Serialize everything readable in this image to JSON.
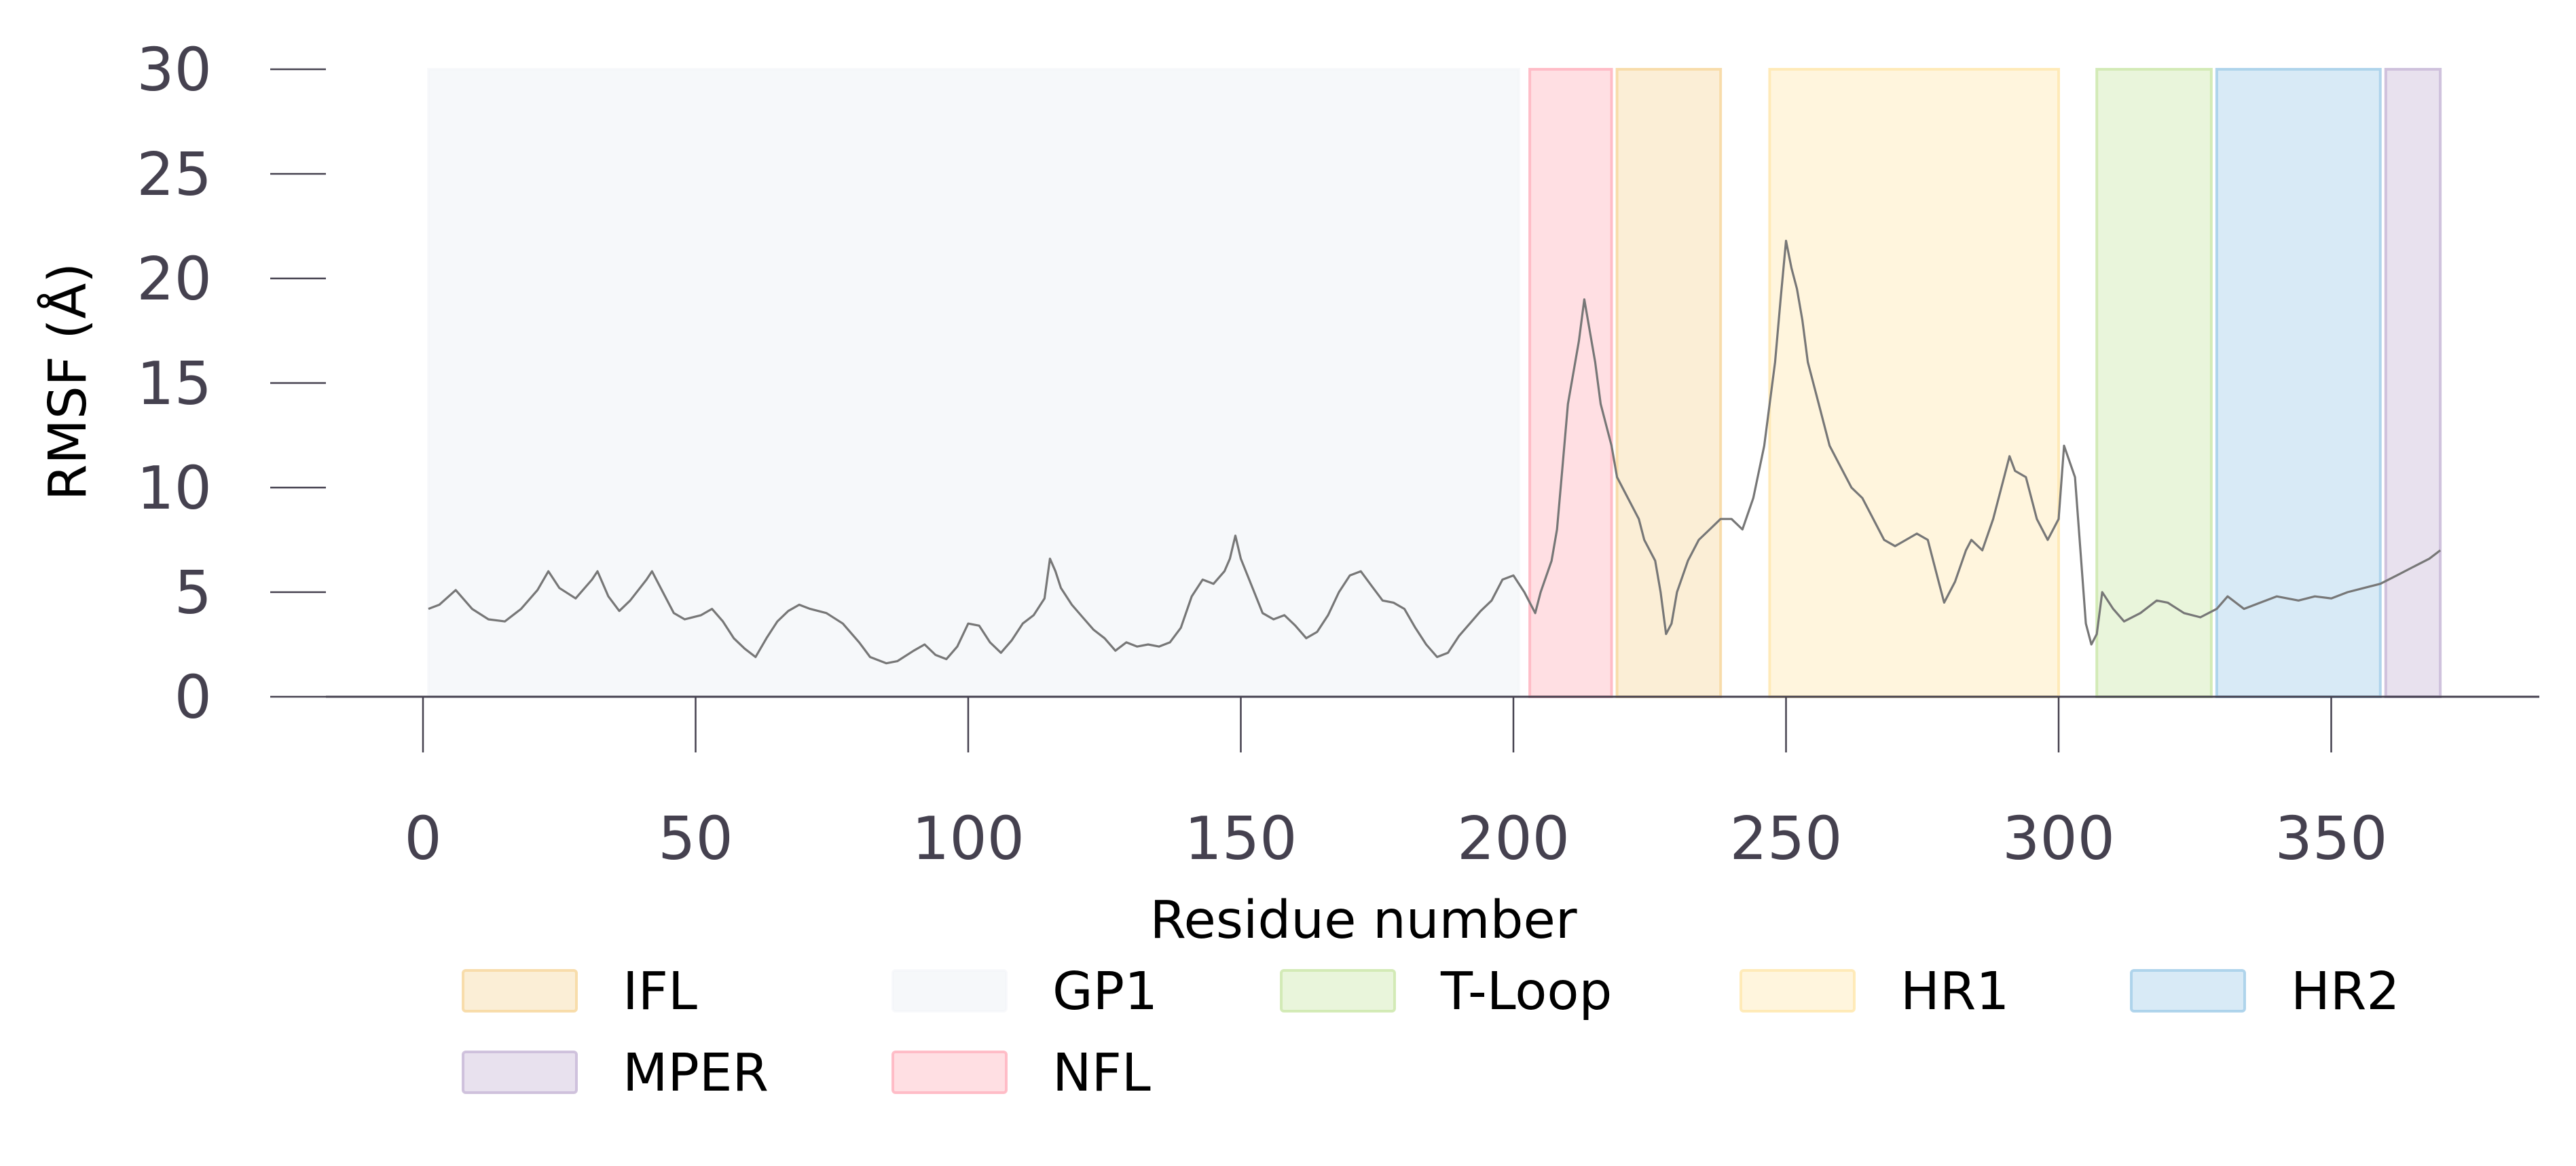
{
  "chart_data": {
    "type": "line",
    "xlabel": "Residue number",
    "ylabel": "RMSF (Å)",
    "xlim": [
      -18,
      388
    ],
    "ylim": [
      0,
      30
    ],
    "xticks": [
      0,
      50,
      100,
      150,
      200,
      250,
      300,
      350
    ],
    "yticks": [
      0,
      5,
      10,
      15,
      20,
      25,
      30
    ],
    "grid": false,
    "legend_position": "bottom",
    "line_color": "#777777",
    "regions": [
      {
        "name": "GP1",
        "start": 1,
        "end": 201,
        "color": "#f3f5f8"
      },
      {
        "name": "NFL",
        "start": 203,
        "end": 218,
        "color": "#ffb7c2"
      },
      {
        "name": "IFL",
        "start": 219,
        "end": 238,
        "color": "#f7d9a4"
      },
      {
        "name": "HR1",
        "start": 247,
        "end": 300,
        "color": "#ffe9b3"
      },
      {
        "name": "T-Loop",
        "start": 307,
        "end": 328,
        "color": "#cfe9b0"
      },
      {
        "name": "HR2",
        "start": 329,
        "end": 359,
        "color": "#a9d0ea"
      },
      {
        "name": "MPER",
        "start": 360,
        "end": 370,
        "color": "#cbbcd9"
      }
    ],
    "legend_order": [
      "IFL",
      "GP1",
      "T-Loop",
      "HR1",
      "HR2",
      "MPER",
      "NFL"
    ],
    "series": [
      {
        "points": [
          [
            1,
            4.2
          ],
          [
            3,
            4.4
          ],
          [
            6,
            5.1
          ],
          [
            9,
            4.2
          ],
          [
            12,
            3.7
          ],
          [
            15,
            3.6
          ],
          [
            18,
            4.2
          ],
          [
            21,
            5.1
          ],
          [
            23,
            6.0
          ],
          [
            25,
            5.2
          ],
          [
            28,
            4.7
          ],
          [
            31,
            5.6
          ],
          [
            32,
            6.0
          ],
          [
            34,
            4.8
          ],
          [
            36,
            4.1
          ],
          [
            38,
            4.6
          ],
          [
            41,
            5.6
          ],
          [
            42,
            6.0
          ],
          [
            44,
            5.0
          ],
          [
            46,
            4.0
          ],
          [
            48,
            3.7
          ],
          [
            51,
            3.9
          ],
          [
            53,
            4.2
          ],
          [
            55,
            3.6
          ],
          [
            57,
            2.8
          ],
          [
            59,
            2.3
          ],
          [
            61,
            1.9
          ],
          [
            63,
            2.8
          ],
          [
            65,
            3.6
          ],
          [
            67,
            4.1
          ],
          [
            69,
            4.4
          ],
          [
            71,
            4.2
          ],
          [
            74,
            4.0
          ],
          [
            77,
            3.5
          ],
          [
            80,
            2.6
          ],
          [
            82,
            1.9
          ],
          [
            85,
            1.6
          ],
          [
            87,
            1.7
          ],
          [
            90,
            2.2
          ],
          [
            92,
            2.5
          ],
          [
            94,
            2.0
          ],
          [
            96,
            1.8
          ],
          [
            98,
            2.4
          ],
          [
            100,
            3.5
          ],
          [
            102,
            3.4
          ],
          [
            104,
            2.6
          ],
          [
            106,
            2.1
          ],
          [
            108,
            2.7
          ],
          [
            110,
            3.5
          ],
          [
            112,
            3.9
          ],
          [
            114,
            4.7
          ],
          [
            115,
            6.6
          ],
          [
            116,
            6.0
          ],
          [
            117,
            5.2
          ],
          [
            119,
            4.4
          ],
          [
            121,
            3.8
          ],
          [
            123,
            3.2
          ],
          [
            125,
            2.8
          ],
          [
            127,
            2.2
          ],
          [
            129,
            2.6
          ],
          [
            131,
            2.4
          ],
          [
            133,
            2.5
          ],
          [
            135,
            2.4
          ],
          [
            137,
            2.6
          ],
          [
            139,
            3.3
          ],
          [
            141,
            4.8
          ],
          [
            143,
            5.6
          ],
          [
            145,
            5.4
          ],
          [
            147,
            6.0
          ],
          [
            148,
            6.6
          ],
          [
            149,
            7.7
          ],
          [
            150,
            6.6
          ],
          [
            152,
            5.3
          ],
          [
            154,
            4.0
          ],
          [
            156,
            3.7
          ],
          [
            158,
            3.9
          ],
          [
            160,
            3.4
          ],
          [
            162,
            2.8
          ],
          [
            164,
            3.1
          ],
          [
            166,
            3.9
          ],
          [
            168,
            5.0
          ],
          [
            170,
            5.8
          ],
          [
            172,
            6.0
          ],
          [
            174,
            5.3
          ],
          [
            176,
            4.6
          ],
          [
            178,
            4.5
          ],
          [
            180,
            4.2
          ],
          [
            182,
            3.3
          ],
          [
            184,
            2.5
          ],
          [
            186,
            1.9
          ],
          [
            188,
            2.1
          ],
          [
            190,
            2.9
          ],
          [
            192,
            3.5
          ],
          [
            194,
            4.1
          ],
          [
            196,
            4.6
          ],
          [
            198,
            5.6
          ],
          [
            200,
            5.8
          ],
          [
            202,
            5.0
          ],
          [
            204,
            4.0
          ],
          [
            205,
            5.0
          ],
          [
            207,
            6.5
          ],
          [
            208,
            8.0
          ],
          [
            209,
            11.0
          ],
          [
            210,
            14.0
          ],
          [
            212,
            17.0
          ],
          [
            213,
            19.0
          ],
          [
            214,
            17.5
          ],
          [
            215,
            16.0
          ],
          [
            216,
            14.0
          ],
          [
            217,
            13.0
          ],
          [
            218,
            12.0
          ],
          [
            219,
            10.5
          ],
          [
            221,
            9.5
          ],
          [
            223,
            8.5
          ],
          [
            224,
            7.5
          ],
          [
            226,
            6.5
          ],
          [
            227,
            5.0
          ],
          [
            228,
            3.0
          ],
          [
            229,
            3.5
          ],
          [
            230,
            5.0
          ],
          [
            232,
            6.5
          ],
          [
            234,
            7.5
          ],
          [
            236,
            8.0
          ],
          [
            238,
            8.5
          ],
          [
            240,
            8.5
          ],
          [
            242,
            8.0
          ],
          [
            244,
            9.5
          ],
          [
            246,
            12.0
          ],
          [
            248,
            16.0
          ],
          [
            249,
            19.0
          ],
          [
            250,
            21.8
          ],
          [
            251,
            20.5
          ],
          [
            252,
            19.5
          ],
          [
            253,
            18.0
          ],
          [
            254,
            16.0
          ],
          [
            256,
            14.0
          ],
          [
            258,
            12.0
          ],
          [
            260,
            11.0
          ],
          [
            262,
            10.0
          ],
          [
            264,
            9.5
          ],
          [
            266,
            8.5
          ],
          [
            268,
            7.5
          ],
          [
            270,
            7.2
          ],
          [
            272,
            7.5
          ],
          [
            274,
            7.8
          ],
          [
            276,
            7.5
          ],
          [
            278,
            5.5
          ],
          [
            279,
            4.5
          ],
          [
            281,
            5.5
          ],
          [
            283,
            7.0
          ],
          [
            284,
            7.5
          ],
          [
            286,
            7.0
          ],
          [
            288,
            8.5
          ],
          [
            290,
            10.5
          ],
          [
            291,
            11.5
          ],
          [
            292,
            10.8
          ],
          [
            294,
            10.5
          ],
          [
            296,
            8.5
          ],
          [
            298,
            7.5
          ],
          [
            300,
            8.5
          ],
          [
            301,
            12.0
          ],
          [
            303,
            10.5
          ],
          [
            304,
            7.0
          ],
          [
            305,
            3.5
          ],
          [
            306,
            2.5
          ],
          [
            307,
            3.0
          ],
          [
            308,
            5.0
          ],
          [
            310,
            4.2
          ],
          [
            312,
            3.6
          ],
          [
            315,
            4.0
          ],
          [
            318,
            4.6
          ],
          [
            320,
            4.5
          ],
          [
            323,
            4.0
          ],
          [
            326,
            3.8
          ],
          [
            329,
            4.2
          ],
          [
            331,
            4.8
          ],
          [
            334,
            4.2
          ],
          [
            337,
            4.5
          ],
          [
            340,
            4.8
          ],
          [
            344,
            4.6
          ],
          [
            347,
            4.8
          ],
          [
            350,
            4.7
          ],
          [
            353,
            5.0
          ],
          [
            356,
            5.2
          ],
          [
            359,
            5.4
          ],
          [
            362,
            5.8
          ],
          [
            365,
            6.2
          ],
          [
            368,
            6.6
          ],
          [
            370,
            7.0
          ]
        ]
      }
    ]
  }
}
